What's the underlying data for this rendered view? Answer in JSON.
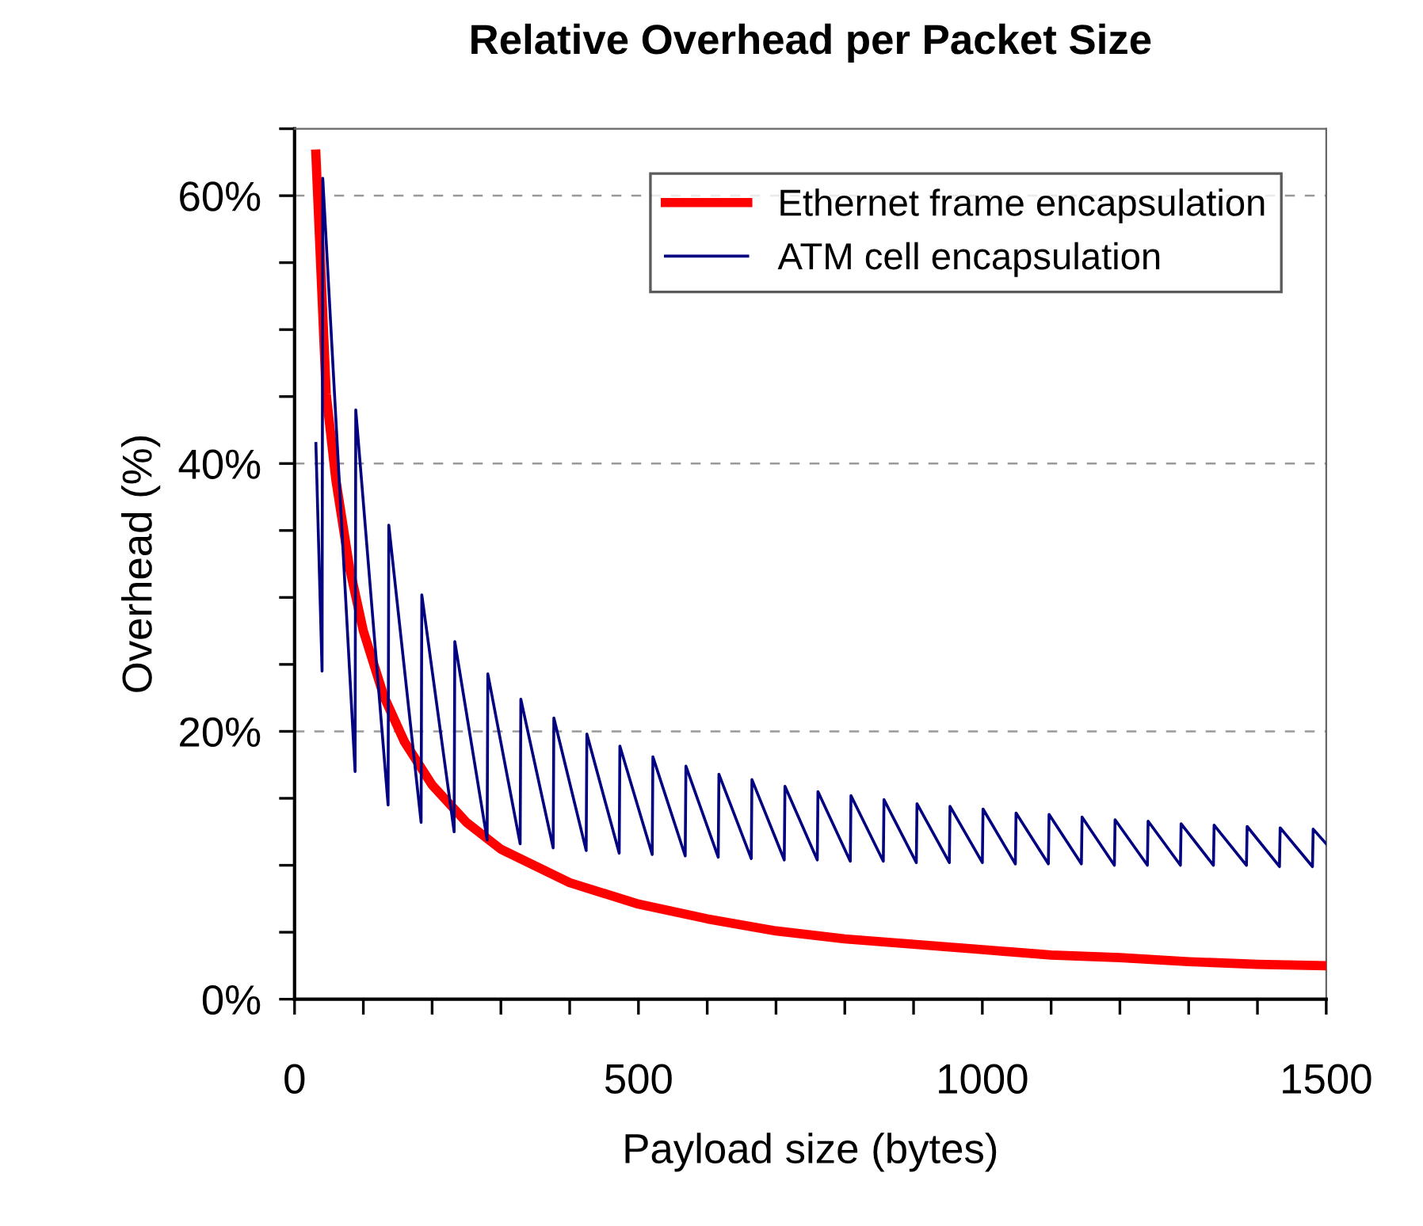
{
  "chart_data": {
    "type": "line",
    "title": "Relative Overhead per Packet Size",
    "xlabel": "Payload size (bytes)",
    "ylabel": "Overhead (%)",
    "xlim": [
      0,
      1500
    ],
    "ylim": [
      0,
      65
    ],
    "xticks": [
      0,
      {
        "value": 100,
        "label": null
      },
      {
        "value": 200,
        "label": null
      },
      {
        "value": 300,
        "label": null
      },
      {
        "value": 400,
        "label": null
      },
      500,
      {
        "value": 600,
        "label": null
      },
      {
        "value": 700,
        "label": null
      },
      {
        "value": 800,
        "label": null
      },
      {
        "value": 900,
        "label": null
      },
      1000,
      {
        "value": 1100,
        "label": null
      },
      {
        "value": 1200,
        "label": null
      },
      {
        "value": 1300,
        "label": null
      },
      {
        "value": 1400,
        "label": null
      },
      1500
    ],
    "yticks": [
      {
        "value": 0,
        "label": "0%"
      },
      {
        "value": 5,
        "label": null
      },
      {
        "value": 10,
        "label": null
      },
      {
        "value": 15,
        "label": null
      },
      {
        "value": 20,
        "label": "20%"
      },
      {
        "value": 25,
        "label": null
      },
      {
        "value": 30,
        "label": null
      },
      {
        "value": 35,
        "label": null
      },
      {
        "value": 40,
        "label": "40%"
      },
      {
        "value": 45,
        "label": null
      },
      {
        "value": 50,
        "label": null
      },
      {
        "value": 55,
        "label": null
      },
      {
        "value": 60,
        "label": "60%"
      },
      {
        "value": 65,
        "label": null
      }
    ],
    "grid": "y",
    "legend": "top right",
    "line_style": "solid",
    "marker": "none",
    "series": [
      {
        "name": "Ethernet frame encapsulation",
        "color": "#ff0000",
        "x": [
          31,
          40,
          46,
          60,
          80,
          100,
          130,
          160,
          200,
          250,
          300,
          400,
          500,
          600,
          700,
          800,
          900,
          1000,
          1100,
          1200,
          1300,
          1400,
          1500
        ],
        "values": [
          63.1,
          52.4,
          45.2,
          38.8,
          32.2,
          27.5,
          22.6,
          19.2,
          16.0,
          13.2,
          11.2,
          8.7,
          7.1,
          6.0,
          5.1,
          4.5,
          4.1,
          3.7,
          3.3,
          3.1,
          2.8,
          2.6,
          2.5
        ]
      },
      {
        "name": "ATM cell encapsulation",
        "color": "#000080",
        "x": [
          31,
          40,
          41,
          88,
          89,
          136,
          137,
          184,
          185,
          232,
          233,
          280,
          281,
          328,
          329,
          376,
          377,
          424,
          425,
          472,
          473,
          520,
          521,
          568,
          569,
          616,
          617,
          664,
          665,
          712,
          713,
          760,
          761,
          808,
          809,
          856,
          857,
          904,
          905,
          952,
          953,
          1000,
          1001,
          1048,
          1049,
          1096,
          1097,
          1144,
          1145,
          1192,
          1193,
          1240,
          1241,
          1288,
          1289,
          1336,
          1337,
          1384,
          1385,
          1432,
          1433,
          1480,
          1481,
          1500
        ],
        "values": [
          41.5,
          24.5,
          61.3,
          17.0,
          44.0,
          14.5,
          35.4,
          13.2,
          30.2,
          12.5,
          26.7,
          11.9,
          24.3,
          11.6,
          22.4,
          11.3,
          21.0,
          11.1,
          19.8,
          10.9,
          18.9,
          10.8,
          18.1,
          10.7,
          17.4,
          10.6,
          16.8,
          10.5,
          16.4,
          10.4,
          15.9,
          10.4,
          15.5,
          10.3,
          15.2,
          10.3,
          14.9,
          10.2,
          14.6,
          10.2,
          14.4,
          10.2,
          14.2,
          10.1,
          13.9,
          10.1,
          13.8,
          10.1,
          13.6,
          10.0,
          13.4,
          10.0,
          13.3,
          10.0,
          13.1,
          10.0,
          13.0,
          10.0,
          12.9,
          9.9,
          12.8,
          9.9,
          12.7,
          11.6
        ]
      }
    ]
  }
}
